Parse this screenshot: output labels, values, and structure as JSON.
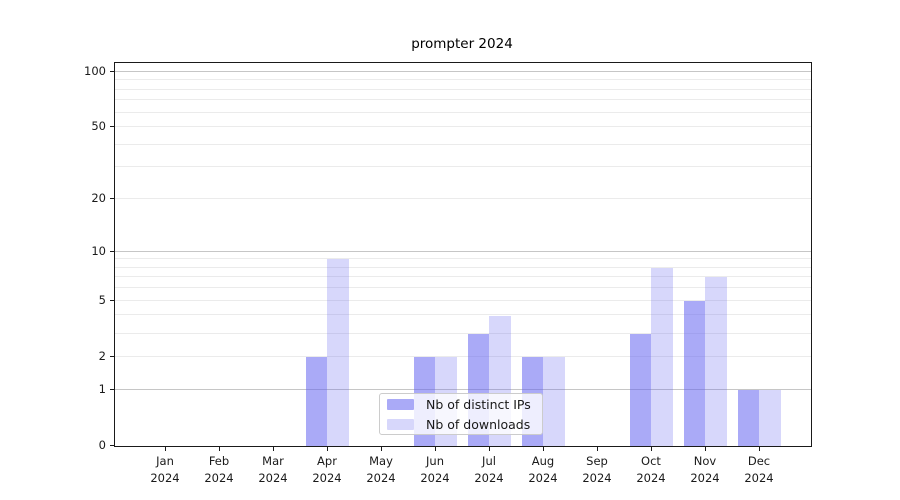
{
  "chart_data": {
    "type": "bar",
    "title": "prompter 2024",
    "months": [
      "Jan",
      "Feb",
      "Mar",
      "Apr",
      "May",
      "Jun",
      "Jul",
      "Aug",
      "Sep",
      "Oct",
      "Nov",
      "Dec"
    ],
    "year_label": "2024",
    "series": [
      {
        "name": "Nb of distinct IPs",
        "color": "rgba(100,100,240,0.55)",
        "values": [
          0,
          0,
          0,
          2,
          0,
          2,
          3,
          2,
          0,
          3,
          5,
          1
        ]
      },
      {
        "name": "Nb of downloads",
        "color": "rgba(100,100,240,0.26)",
        "values": [
          0,
          0,
          0,
          9,
          0,
          2,
          4,
          2,
          0,
          8,
          7,
          1
        ]
      }
    ],
    "y_axis": {
      "scale": "log10(1+v)",
      "ticks": [
        0,
        1,
        2,
        5,
        10,
        20,
        50,
        100
      ],
      "major_gridlines": [
        1,
        10,
        100
      ],
      "minor_gridlines": [
        2,
        3,
        4,
        5,
        6,
        7,
        8,
        9,
        20,
        30,
        40,
        50,
        60,
        70,
        80,
        90
      ],
      "ylim": [
        0,
        111
      ]
    },
    "legend_position": "lower center",
    "grid": true,
    "colors": {
      "grid_minor": "#ebebeb",
      "grid_major": "#c6c6c6",
      "axis": "#1a1a1a",
      "background": "#ffffff"
    }
  }
}
